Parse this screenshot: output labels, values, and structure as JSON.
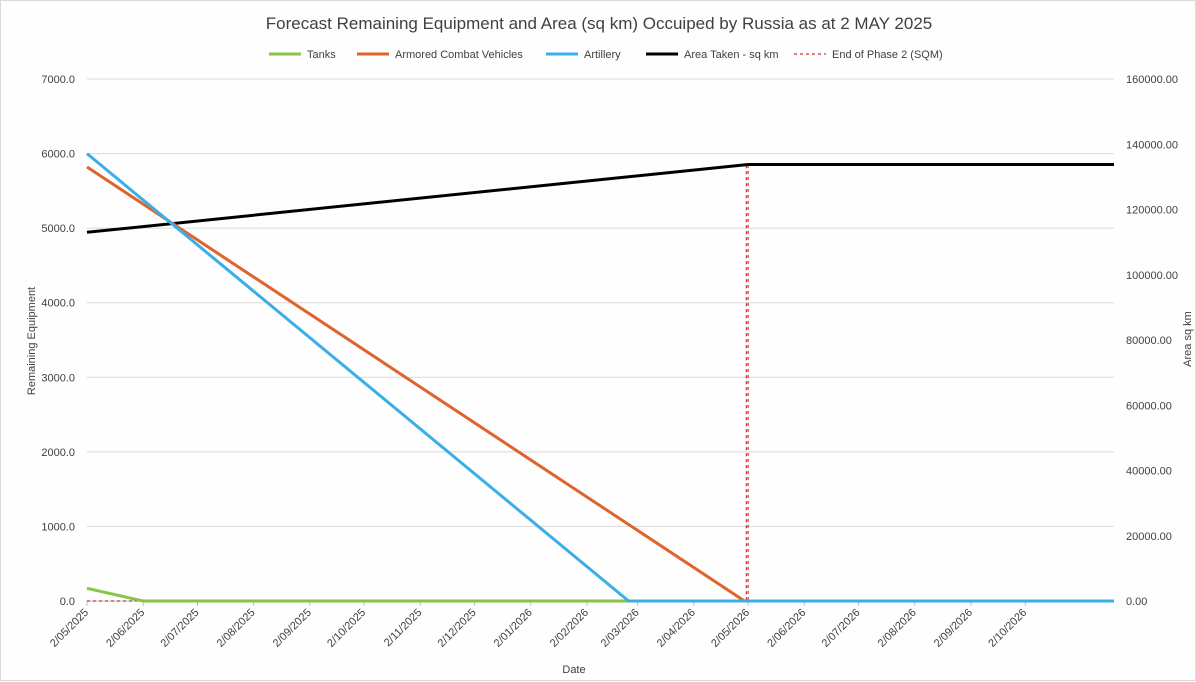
{
  "chart_data": {
    "type": "line",
    "title": "Forecast Remaining Equipment and Area (sq km) Occuiped by Russia as at 2 MAY 2025",
    "xlabel": "Date",
    "ylabel": "Remaining Equipment",
    "y2label": "Area sq km",
    "ylim": [
      0,
      7000
    ],
    "y2lim": [
      0,
      160000
    ],
    "yticks": [
      "0.0",
      "1000.0",
      "2000.0",
      "3000.0",
      "4000.0",
      "5000.0",
      "6000.0",
      "7000.0"
    ],
    "y2ticks": [
      "0.00",
      "20000.00",
      "40000.00",
      "60000.00",
      "80000.00",
      "100000.00",
      "120000.00",
      "140000.00",
      "160000.00"
    ],
    "x_range": [
      "2025-05-02",
      "2026-11-20"
    ],
    "x_tick_labels": [
      "2/05/2025",
      "2/06/2025",
      "2/07/2025",
      "2/08/2025",
      "2/09/2025",
      "2/10/2025",
      "2/11/2025",
      "2/12/2025",
      "2/01/2026",
      "2/02/2026",
      "2/03/2026",
      "2/04/2026",
      "2/05/2026",
      "2/06/2026",
      "2/07/2026",
      "2/08/2026",
      "2/09/2026",
      "2/10/2026"
    ],
    "legend_position": "top",
    "series": [
      {
        "name": "Tanks",
        "color": "#8bc34a",
        "axis": "left",
        "style": "solid",
        "points": [
          [
            "2025-05-02",
            170
          ],
          [
            "2025-06-02",
            0
          ],
          [
            "2026-11-20",
            0
          ]
        ]
      },
      {
        "name": "Armored Combat Vehicles",
        "color": "#e0632c",
        "axis": "left",
        "style": "solid",
        "points": [
          [
            "2025-05-02",
            5820
          ],
          [
            "2026-04-30",
            0
          ],
          [
            "2026-11-20",
            0
          ]
        ]
      },
      {
        "name": "Artillery",
        "color": "#3aaee6",
        "axis": "left",
        "style": "solid",
        "points": [
          [
            "2025-05-02",
            6000
          ],
          [
            "2026-02-25",
            0
          ],
          [
            "2026-11-20",
            0
          ]
        ]
      },
      {
        "name": "Area Taken - sq km",
        "color": "#000000",
        "axis": "right",
        "style": "solid",
        "points": [
          [
            "2025-05-02",
            113000
          ],
          [
            "2026-05-02",
            133800
          ],
          [
            "2026-11-20",
            133800
          ]
        ]
      },
      {
        "name": "End of Phase 2 (SQM)",
        "color": "#c00000",
        "axis": "right",
        "style": "dashed",
        "points": [
          [
            "2025-05-02",
            0
          ],
          [
            "2026-05-01",
            0
          ],
          [
            "2026-05-01",
            133800
          ],
          [
            "2026-05-02",
            133800
          ],
          [
            "2026-05-02",
            0
          ],
          [
            "2026-11-20",
            0
          ]
        ]
      }
    ]
  }
}
